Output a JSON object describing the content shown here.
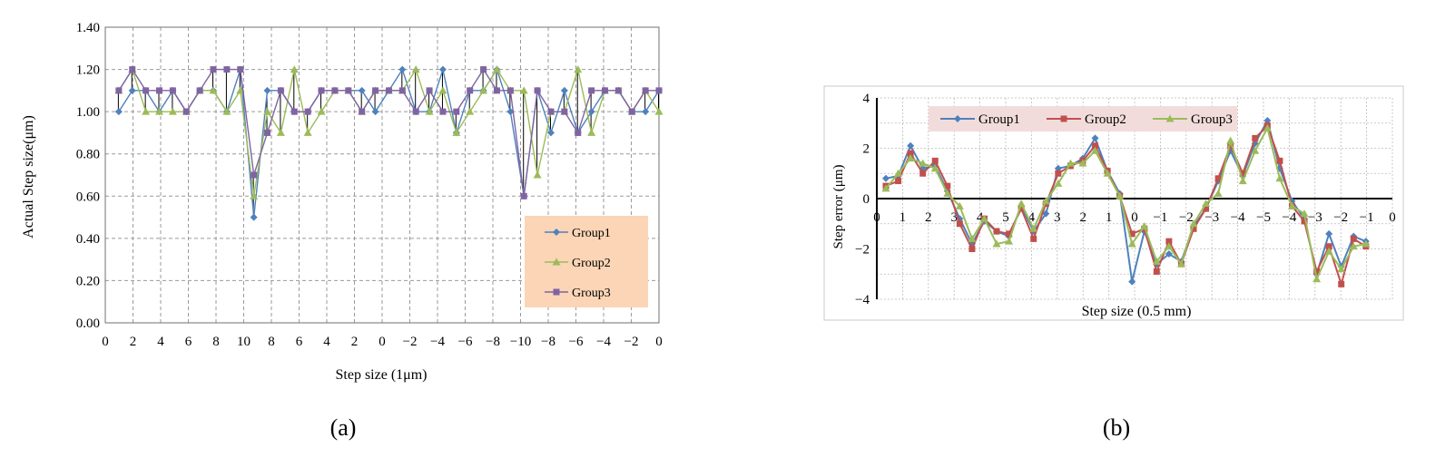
{
  "figure": {
    "caption_a": "(a)",
    "caption_b": "(b)"
  },
  "colors": {
    "Group1": "#4f81bd",
    "Group2": "#9bbb59",
    "Group3": "#8064a2",
    "b_Group1": "#4f81bd",
    "b_Group2": "#c0504d",
    "b_Group3": "#9bbb59",
    "legend_a_bg": "#fbd5b5",
    "legend_b_bg": "#f2dcdb",
    "grid": "#9a9a9a"
  },
  "chart_data": [
    {
      "type": "line",
      "title": "",
      "xlabel": "Step size (1μm)",
      "ylabel": "Actual Step size(μm)",
      "ylim": [
        0,
        1.4
      ],
      "yticks": [
        "0.00",
        "0.20",
        "0.40",
        "0.60",
        "0.80",
        "1.00",
        "1.20",
        "1.40"
      ],
      "xticks": [
        "0",
        "2",
        "4",
        "6",
        "8",
        "10",
        "8",
        "6",
        "4",
        "2",
        "0",
        "−2",
        "−4",
        "−6",
        "−8",
        "−10",
        "−8",
        "−6",
        "−4",
        "−2",
        "0"
      ],
      "grid": true,
      "legend_position": "bottom-right",
      "n_points": 41,
      "series": [
        {
          "name": "Group1",
          "values": [
            1.0,
            1.1,
            1.1,
            1.0,
            1.1,
            1.0,
            1.1,
            1.1,
            1.0,
            1.2,
            0.5,
            1.1,
            1.1,
            1.0,
            1.0,
            1.1,
            1.1,
            1.1,
            1.1,
            1.0,
            1.1,
            1.2,
            1.0,
            1.0,
            1.2,
            0.9,
            1.1,
            1.1,
            1.2,
            1.0,
            0.6,
            1.1,
            0.9,
            1.1,
            0.9,
            1.0,
            1.1,
            1.1,
            1.0,
            1.0,
            1.1
          ]
        },
        {
          "name": "Group2",
          "values": [
            1.1,
            1.2,
            1.0,
            1.0,
            1.0,
            1.0,
            1.1,
            1.1,
            1.0,
            1.1,
            0.6,
            1.0,
            0.9,
            1.2,
            0.9,
            1.0,
            1.1,
            1.1,
            1.0,
            1.1,
            1.1,
            1.1,
            1.2,
            1.0,
            1.1,
            0.9,
            1.0,
            1.1,
            1.2,
            1.1,
            1.1,
            0.7,
            1.0,
            1.0,
            1.2,
            0.9,
            1.1,
            1.1,
            1.0,
            1.1,
            1.0
          ]
        },
        {
          "name": "Group3",
          "values": [
            1.1,
            1.2,
            1.1,
            1.1,
            1.1,
            1.0,
            1.1,
            1.2,
            1.2,
            1.2,
            0.7,
            0.9,
            1.1,
            1.0,
            1.0,
            1.1,
            1.1,
            1.1,
            1.0,
            1.1,
            1.1,
            1.1,
            1.0,
            1.1,
            1.0,
            1.0,
            1.1,
            1.2,
            1.1,
            1.1,
            0.6,
            1.1,
            1.0,
            1.0,
            0.9,
            1.1,
            1.1,
            1.1,
            1.0,
            1.1,
            1.1
          ]
        }
      ]
    },
    {
      "type": "line",
      "title": "",
      "xlabel": "Step size (0.5 mm)",
      "ylabel": "Step error (μm)",
      "ylim": [
        -4,
        4
      ],
      "yticks": [
        "−4",
        "−2",
        "0",
        "2",
        "4"
      ],
      "xticks": [
        "0",
        "1",
        "2",
        "3",
        "4",
        "5",
        "4",
        "3",
        "2",
        "1",
        "0",
        "−1",
        "−2",
        "−3",
        "−4",
        "−5",
        "−4",
        "−3",
        "−2",
        "−1",
        "0"
      ],
      "grid": true,
      "legend_position": "top",
      "n_points": 40,
      "series": [
        {
          "name": "Group1",
          "values": [
            0.8,
            0.9,
            2.1,
            1.2,
            1.3,
            0.3,
            -0.8,
            -1.8,
            -0.9,
            -1.3,
            -1.5,
            -0.3,
            -1.3,
            -0.6,
            1.2,
            1.3,
            1.6,
            2.4,
            1.1,
            0.2,
            -3.3,
            -1.3,
            -2.6,
            -2.2,
            -2.5,
            -1.1,
            -0.4,
            0.7,
            1.9,
            0.9,
            2.2,
            3.1,
            1.2,
            -0.1,
            -0.8,
            -3.0,
            -1.4,
            -2.7,
            -1.5,
            -1.7
          ]
        },
        {
          "name": "Group2",
          "values": [
            0.5,
            0.7,
            1.8,
            1.0,
            1.5,
            0.5,
            -1.0,
            -2.0,
            -0.8,
            -1.3,
            -1.4,
            -0.4,
            -1.6,
            -0.2,
            1.0,
            1.3,
            1.5,
            2.1,
            1.1,
            0.1,
            -1.4,
            -1.2,
            -2.9,
            -1.7,
            -2.6,
            -1.2,
            -0.4,
            0.8,
            2.1,
            1.0,
            2.4,
            2.9,
            1.5,
            -0.3,
            -0.9,
            -2.9,
            -1.9,
            -3.4,
            -1.6,
            -1.9
          ]
        },
        {
          "name": "Group3",
          "values": [
            0.4,
            1.0,
            1.6,
            1.4,
            1.2,
            0.2,
            -0.3,
            -1.6,
            -0.8,
            -1.8,
            -1.7,
            -0.2,
            -1.2,
            -0.1,
            0.6,
            1.4,
            1.4,
            1.9,
            1.0,
            0.1,
            -1.8,
            -1.1,
            -2.5,
            -1.9,
            -2.6,
            -1.0,
            -0.2,
            0.2,
            2.3,
            0.7,
            1.9,
            2.8,
            0.8,
            -0.3,
            -0.6,
            -3.2,
            -2.1,
            -2.8,
            -1.9,
            -1.8
          ]
        }
      ]
    }
  ]
}
